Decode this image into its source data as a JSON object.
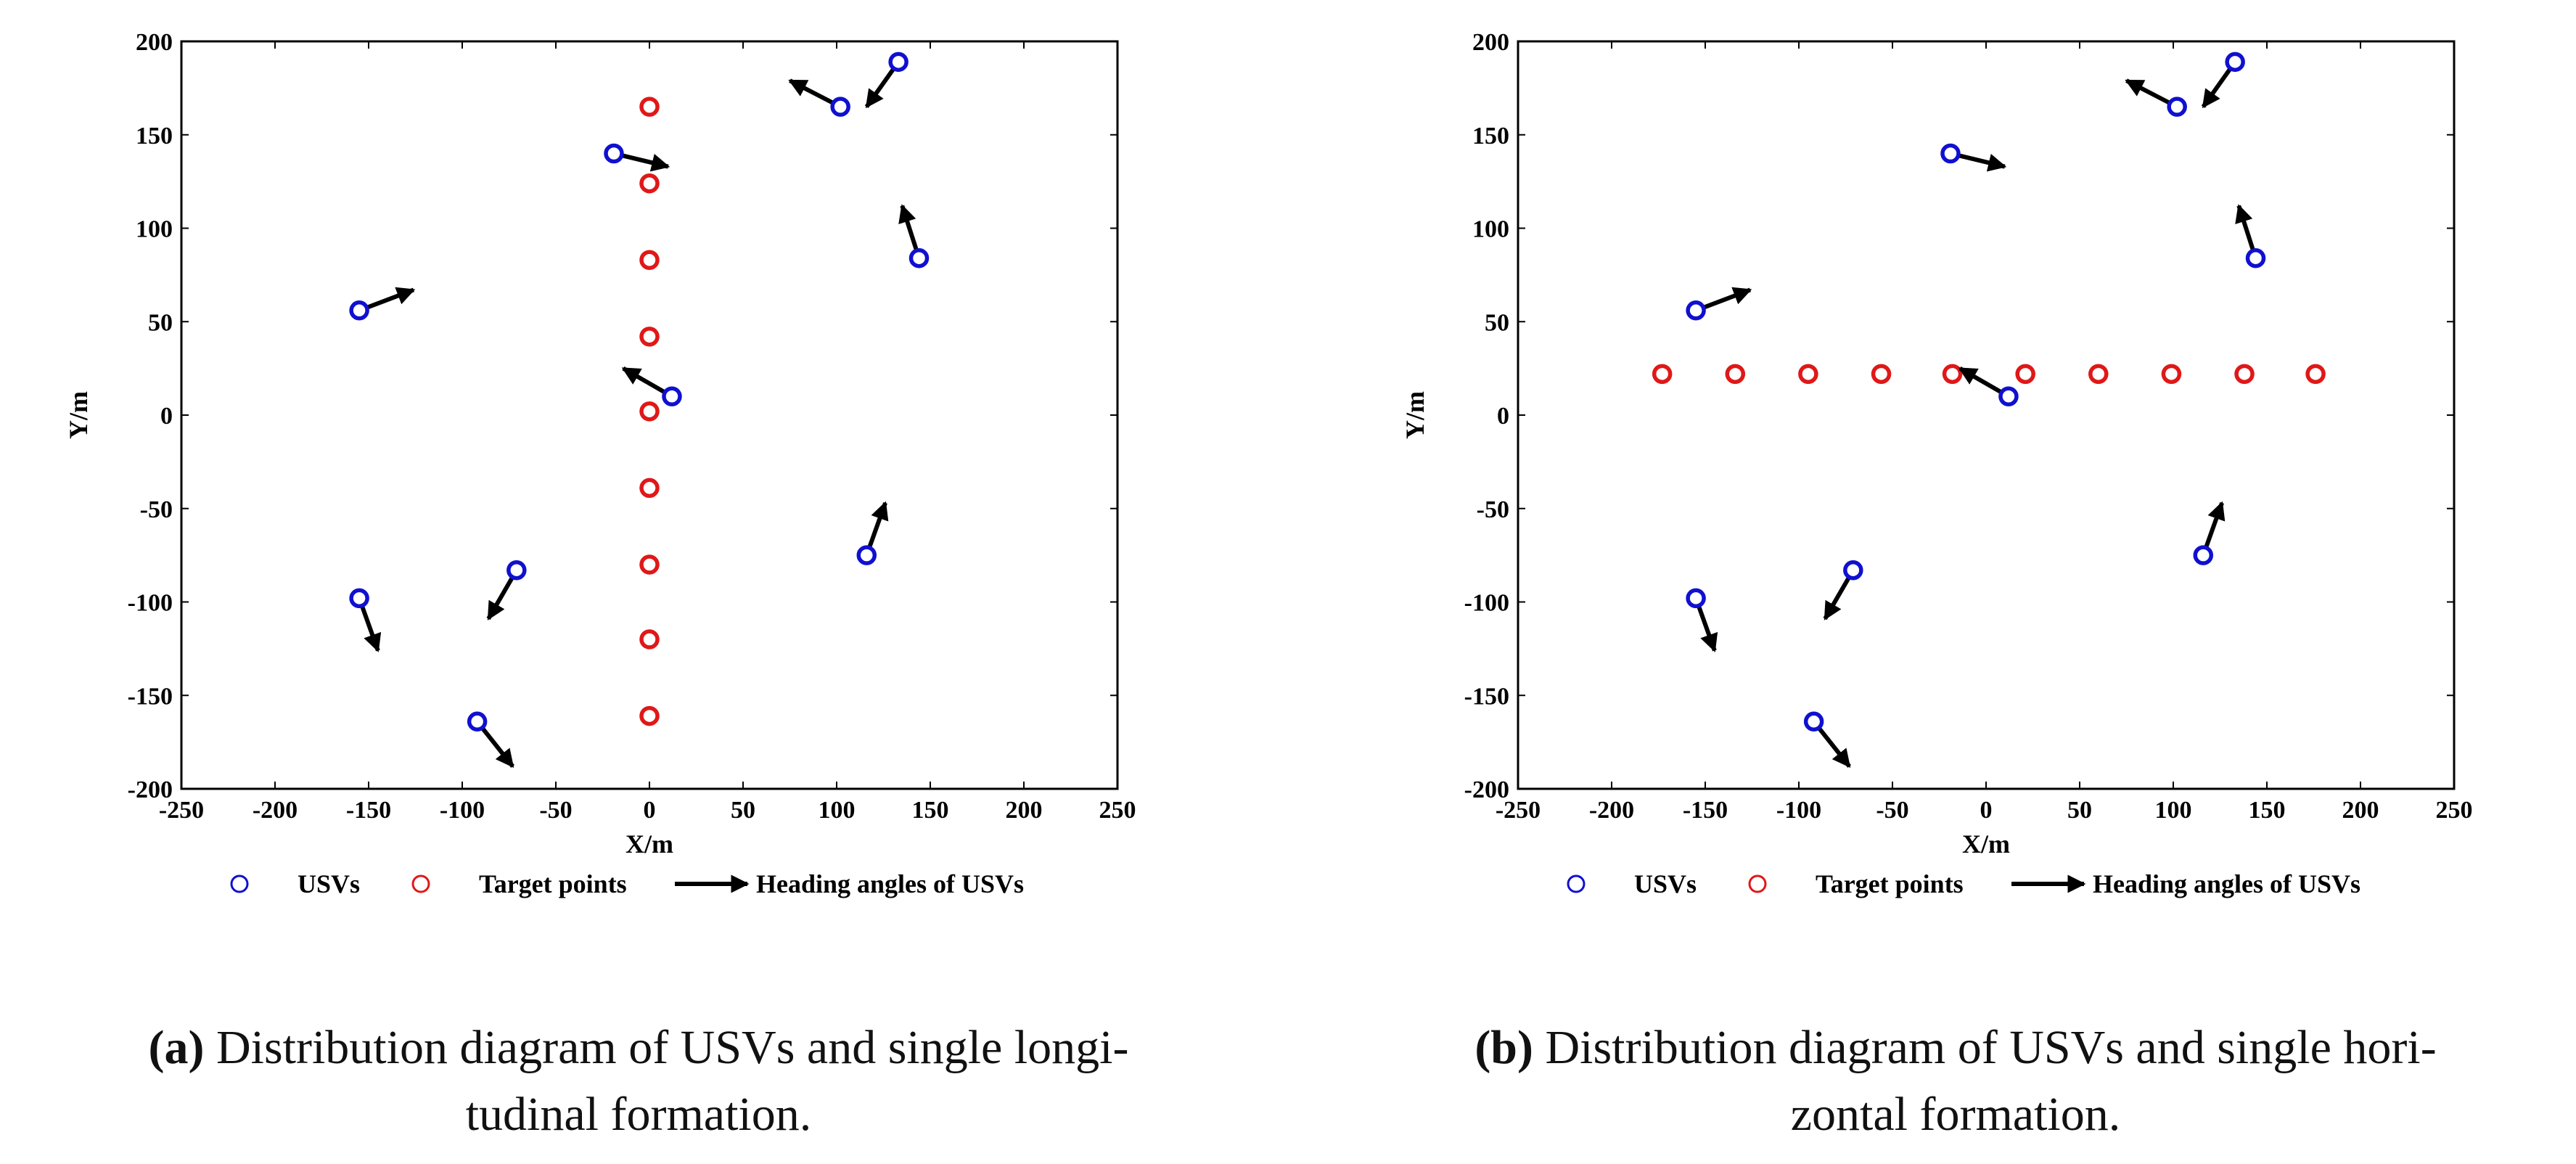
{
  "chart_data": [
    {
      "type": "scatter",
      "panel": "a",
      "xlabel": "X/m",
      "ylabel": "Y/m",
      "xlim": [
        -250,
        250
      ],
      "ylim": [
        -200,
        200
      ],
      "xticks": [
        -250,
        -200,
        -150,
        -100,
        -50,
        0,
        50,
        100,
        150,
        200,
        250
      ],
      "yticks": [
        -200,
        -150,
        -100,
        -50,
        0,
        50,
        100,
        150,
        200
      ],
      "grid": false,
      "legend": [
        "USVs",
        "Target points",
        "Heading angles of USVs"
      ],
      "usvs": [
        {
          "x": 133,
          "y": 189,
          "hx": 116,
          "hy": 165
        },
        {
          "x": 102,
          "y": 165,
          "hx": 75,
          "hy": 179
        },
        {
          "x": -19,
          "y": 140,
          "hx": 10,
          "hy": 133
        },
        {
          "x": 144,
          "y": 84,
          "hx": 135,
          "hy": 112
        },
        {
          "x": -155,
          "y": 56,
          "hx": -126,
          "hy": 67
        },
        {
          "x": 12,
          "y": 10,
          "hx": -14,
          "hy": 25
        },
        {
          "x": 116,
          "y": -75,
          "hx": 126,
          "hy": -47
        },
        {
          "x": -71,
          "y": -83,
          "hx": -86,
          "hy": -109
        },
        {
          "x": -155,
          "y": -98,
          "hx": -145,
          "hy": -126
        },
        {
          "x": -92,
          "y": -164,
          "hx": -73,
          "hy": -188
        }
      ],
      "targets": [
        {
          "x": 0,
          "y": 165
        },
        {
          "x": 0,
          "y": 124
        },
        {
          "x": 0,
          "y": 83
        },
        {
          "x": 0,
          "y": 42
        },
        {
          "x": 0,
          "y": 2
        },
        {
          "x": 0,
          "y": -39
        },
        {
          "x": 0,
          "y": -80
        },
        {
          "x": 0,
          "y": -120
        },
        {
          "x": 0,
          "y": -161
        }
      ]
    },
    {
      "type": "scatter",
      "panel": "b",
      "xlabel": "X/m",
      "ylabel": "Y/m",
      "xlim": [
        -250,
        250
      ],
      "ylim": [
        -200,
        200
      ],
      "xticks": [
        -250,
        -200,
        -150,
        -100,
        -50,
        0,
        50,
        100,
        150,
        200,
        250
      ],
      "yticks": [
        -200,
        -150,
        -100,
        -50,
        0,
        50,
        100,
        150,
        200
      ],
      "grid": false,
      "legend": [
        "USVs",
        "Target points",
        "Heading angles of USVs"
      ],
      "usvs": [
        {
          "x": 133,
          "y": 189,
          "hx": 116,
          "hy": 165
        },
        {
          "x": 102,
          "y": 165,
          "hx": 75,
          "hy": 179
        },
        {
          "x": -19,
          "y": 140,
          "hx": 10,
          "hy": 133
        },
        {
          "x": 144,
          "y": 84,
          "hx": 135,
          "hy": 112
        },
        {
          "x": -155,
          "y": 56,
          "hx": -126,
          "hy": 67
        },
        {
          "x": 12,
          "y": 10,
          "hx": -14,
          "hy": 25
        },
        {
          "x": 116,
          "y": -75,
          "hx": 126,
          "hy": -47
        },
        {
          "x": -71,
          "y": -83,
          "hx": -86,
          "hy": -109
        },
        {
          "x": -155,
          "y": -98,
          "hx": -145,
          "hy": -126
        },
        {
          "x": -92,
          "y": -164,
          "hx": -73,
          "hy": -188
        }
      ],
      "targets": [
        {
          "x": -173,
          "y": 22
        },
        {
          "x": -134,
          "y": 22
        },
        {
          "x": -95,
          "y": 22
        },
        {
          "x": -56,
          "y": 22
        },
        {
          "x": -18,
          "y": 22
        },
        {
          "x": 21,
          "y": 22
        },
        {
          "x": 60,
          "y": 22
        },
        {
          "x": 99,
          "y": 22
        },
        {
          "x": 138,
          "y": 22
        },
        {
          "x": 176,
          "y": 22
        }
      ]
    }
  ],
  "captions": [
    {
      "tag": "(a)",
      "line1": " Distribution diagram of USVs and single longi-",
      "line2": "tudinal formation."
    },
    {
      "tag": "(b)",
      "line1": " Distribution diagram of USVs and single hori-",
      "line2": "zontal formation."
    }
  ],
  "colors": {
    "usv": "#1010d0",
    "target": "#e01818",
    "arrow": "#000000",
    "axis": "#000000"
  }
}
